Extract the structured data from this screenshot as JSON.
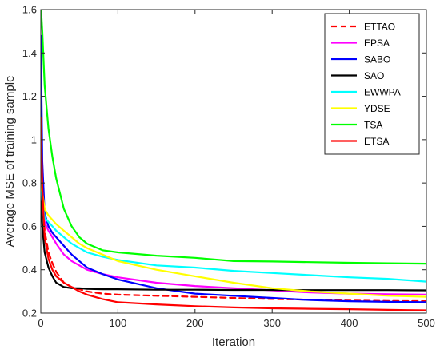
{
  "chart_data": {
    "type": "line",
    "xlabel": "Iteration",
    "ylabel": "Average MSE of training sample",
    "xlim": [
      0,
      500
    ],
    "ylim": [
      0.2,
      1.6
    ],
    "xticks": [
      0,
      100,
      200,
      300,
      400,
      500
    ],
    "yticks": [
      0.2,
      0.4,
      0.6,
      0.8,
      1,
      1.2,
      1.4,
      1.6
    ],
    "grid": false,
    "legend_position": "top-right",
    "series": [
      {
        "name": "ETTAO",
        "color": "#ff0000",
        "dash": "dashed",
        "x": [
          0,
          2,
          5,
          10,
          15,
          20,
          30,
          40,
          50,
          60,
          80,
          100,
          150,
          200,
          250,
          300,
          350,
          400,
          450,
          500
        ],
        "y": [
          1.05,
          0.85,
          0.58,
          0.48,
          0.43,
          0.39,
          0.34,
          0.32,
          0.31,
          0.3,
          0.29,
          0.285,
          0.28,
          0.275,
          0.27,
          0.265,
          0.262,
          0.258,
          0.256,
          0.255
        ]
      },
      {
        "name": "EPSA",
        "color": "#ff00ff",
        "dash": "solid",
        "x": [
          0,
          2,
          5,
          10,
          15,
          20,
          30,
          40,
          50,
          60,
          80,
          100,
          150,
          200,
          250,
          300,
          350,
          400,
          450,
          500
        ],
        "y": [
          0.75,
          0.68,
          0.62,
          0.58,
          0.55,
          0.52,
          0.47,
          0.44,
          0.42,
          0.4,
          0.38,
          0.365,
          0.34,
          0.325,
          0.315,
          0.305,
          0.295,
          0.29,
          0.287,
          0.285
        ]
      },
      {
        "name": "SABO",
        "color": "#0000ff",
        "dash": "solid",
        "x": [
          0,
          2,
          5,
          10,
          15,
          20,
          30,
          40,
          50,
          60,
          80,
          100,
          150,
          200,
          250,
          300,
          350,
          400,
          450,
          500
        ],
        "y": [
          1.48,
          0.9,
          0.66,
          0.6,
          0.57,
          0.55,
          0.51,
          0.47,
          0.44,
          0.41,
          0.38,
          0.355,
          0.315,
          0.29,
          0.28,
          0.27,
          0.26,
          0.255,
          0.252,
          0.25
        ]
      },
      {
        "name": "SAO",
        "color": "#000000",
        "dash": "solid",
        "x": [
          0,
          2,
          5,
          10,
          15,
          20,
          30,
          40,
          50,
          60,
          80,
          100,
          150,
          200,
          250,
          300,
          350,
          400,
          450,
          500
        ],
        "y": [
          0.75,
          0.6,
          0.48,
          0.41,
          0.37,
          0.34,
          0.32,
          0.315,
          0.315,
          0.312,
          0.31,
          0.31,
          0.308,
          0.308,
          0.307,
          0.307,
          0.306,
          0.306,
          0.306,
          0.305
        ]
      },
      {
        "name": "EWWPA",
        "color": "#00ffff",
        "dash": "solid",
        "x": [
          0,
          2,
          5,
          10,
          15,
          20,
          30,
          40,
          50,
          60,
          80,
          100,
          150,
          200,
          250,
          300,
          350,
          400,
          450,
          500
        ],
        "y": [
          0.9,
          0.72,
          0.64,
          0.62,
          0.6,
          0.58,
          0.55,
          0.52,
          0.5,
          0.48,
          0.46,
          0.445,
          0.42,
          0.41,
          0.395,
          0.385,
          0.375,
          0.365,
          0.358,
          0.345
        ]
      },
      {
        "name": "YDSE",
        "color": "#ffff00",
        "dash": "solid",
        "x": [
          0,
          2,
          5,
          10,
          15,
          20,
          30,
          40,
          50,
          60,
          80,
          100,
          150,
          200,
          250,
          300,
          350,
          400,
          450,
          500
        ],
        "y": [
          0.82,
          0.76,
          0.68,
          0.65,
          0.63,
          0.61,
          0.58,
          0.55,
          0.52,
          0.5,
          0.47,
          0.44,
          0.4,
          0.37,
          0.34,
          0.315,
          0.3,
          0.29,
          0.28,
          0.275
        ]
      },
      {
        "name": "TSA",
        "color": "#00ff00",
        "dash": "solid",
        "x": [
          0,
          2,
          5,
          10,
          15,
          20,
          30,
          40,
          50,
          60,
          80,
          100,
          150,
          200,
          250,
          300,
          350,
          400,
          450,
          500
        ],
        "y": [
          1.62,
          1.5,
          1.25,
          1.05,
          0.92,
          0.82,
          0.68,
          0.6,
          0.55,
          0.52,
          0.49,
          0.48,
          0.465,
          0.455,
          0.44,
          0.438,
          0.435,
          0.432,
          0.43,
          0.428
        ]
      },
      {
        "name": "ETSA",
        "color": "#ff0000",
        "dash": "solid",
        "x": [
          0,
          2,
          5,
          10,
          15,
          20,
          30,
          40,
          50,
          60,
          80,
          100,
          150,
          200,
          250,
          300,
          350,
          400,
          450,
          500
        ],
        "y": [
          1.1,
          0.78,
          0.55,
          0.45,
          0.4,
          0.37,
          0.34,
          0.32,
          0.3,
          0.285,
          0.265,
          0.25,
          0.24,
          0.232,
          0.226,
          0.222,
          0.22,
          0.218,
          0.215,
          0.213
        ]
      }
    ]
  }
}
